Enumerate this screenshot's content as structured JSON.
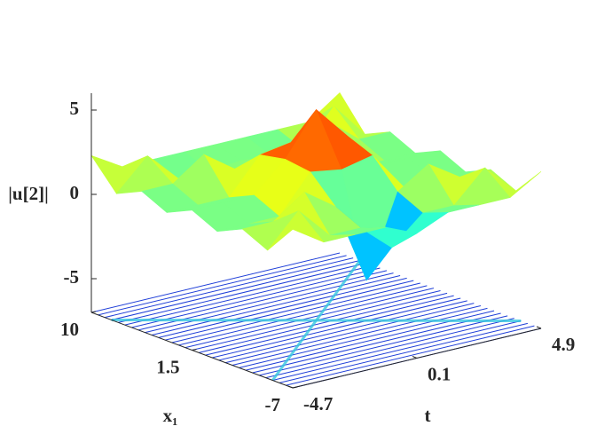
{
  "chart_data": {
    "type": "surface",
    "xlabel": "x₁",
    "ylabel": "t",
    "zlabel": "|u[2]|",
    "xlim": [
      -7,
      10
    ],
    "xticks": [
      -7,
      1.5,
      10
    ],
    "ylim": [
      -4.7,
      4.9
    ],
    "yticks": [
      -4.7,
      0.1,
      4.9
    ],
    "zlim": [
      -7,
      6
    ],
    "zticks": [
      -5,
      0,
      5
    ],
    "x": [
      -7,
      -4.875,
      -2.75,
      -0.625,
      1.5,
      3.625,
      5.75,
      7.875,
      10
    ],
    "y": [
      -4.7,
      -3.5,
      -2.3,
      -1.1,
      0.1,
      1.3,
      2.5,
      3.7,
      4.9
    ],
    "z": [
      [
        2.4,
        1.2,
        1.2,
        1.2,
        0.4,
        1.2,
        1.2,
        1.2,
        2.3
      ],
      [
        0.6,
        2.5,
        0.6,
        0.6,
        -1.0,
        0.6,
        0.6,
        2.4,
        0.6
      ],
      [
        1.3,
        1.3,
        2.6,
        1.3,
        -3.5,
        1.3,
        2.5,
        1.3,
        1.3
      ],
      [
        0.6,
        0.6,
        0.6,
        2.8,
        2.5,
        2.9,
        0.6,
        0.6,
        0.6
      ],
      [
        1.3,
        1.3,
        1.3,
        3.0,
        5.5,
        3.5,
        1.3,
        1.3,
        1.3
      ],
      [
        0.6,
        0.6,
        0.6,
        2.7,
        3.0,
        3.0,
        0.6,
        0.6,
        0.6
      ],
      [
        1.3,
        1.3,
        2.6,
        1.3,
        1.5,
        1.3,
        2.8,
        1.3,
        1.3
      ],
      [
        0.6,
        2.4,
        0.6,
        0.6,
        0.8,
        0.6,
        0.6,
        2.7,
        0.6
      ],
      [
        2.3,
        1.2,
        1.2,
        1.2,
        1.2,
        1.2,
        1.2,
        1.2,
        2.5
      ]
    ],
    "colormap": "jet"
  }
}
